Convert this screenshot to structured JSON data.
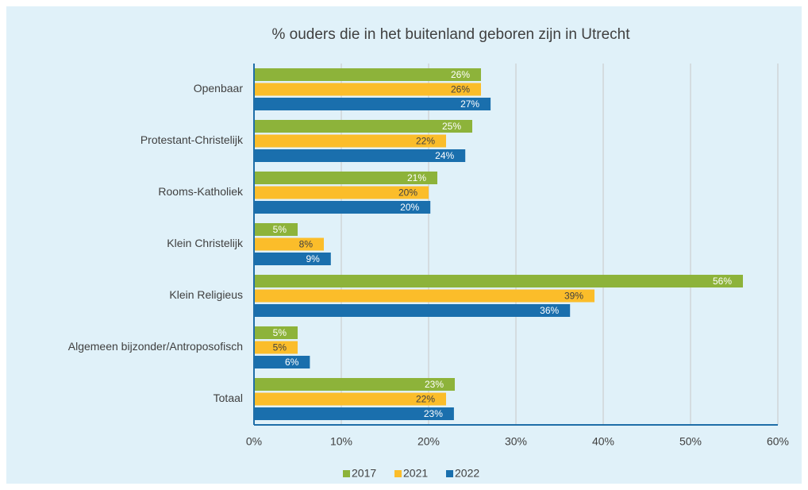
{
  "chart_data": {
    "type": "hbar",
    "title": "% ouders die in het buitenland geboren zijn in Utrecht",
    "categories": [
      "Openbaar",
      "Protestant-Christelijk",
      "Rooms-Katholiek",
      "Klein Christelijk",
      "Klein Religieus",
      "Algemeen bijzonder/Antroposofisch",
      "Totaal"
    ],
    "series": [
      {
        "name": "2017",
        "color": "#8db33a",
        "values": [
          26,
          25,
          21,
          5,
          56,
          5,
          23
        ],
        "value_labels": [
          "26%",
          "25%",
          "21%",
          "5%",
          "56%",
          "5%",
          "23%"
        ]
      },
      {
        "name": "2021",
        "color": "#fbbd2a",
        "values": [
          26,
          22,
          20,
          8,
          39,
          5,
          22
        ],
        "value_labels": [
          "26%",
          "22%",
          "20%",
          "8%",
          "39%",
          "5%",
          "22%"
        ]
      },
      {
        "name": "2022",
        "color": "#1a6fad",
        "values": [
          27.1,
          24.2,
          20.2,
          8.8,
          36.2,
          6.4,
          22.9
        ],
        "value_labels": [
          "27%",
          "24%",
          "20%",
          "9%",
          "36%",
          "6%",
          "23%"
        ]
      }
    ],
    "xlim": [
      0,
      60
    ],
    "xticks": [
      {
        "value": 0,
        "label": "0%"
      },
      {
        "value": 10,
        "label": "10%"
      },
      {
        "value": 20,
        "label": "20%"
      },
      {
        "value": 30,
        "label": "30%"
      },
      {
        "value": 40,
        "label": "40%"
      },
      {
        "value": 50,
        "label": "50%"
      },
      {
        "value": 60,
        "label": "60%"
      }
    ],
    "grid": true,
    "legend": "bottom"
  }
}
